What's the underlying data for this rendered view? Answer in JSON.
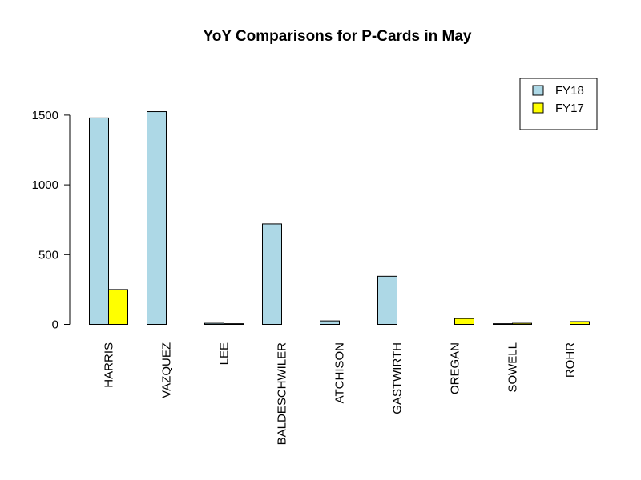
{
  "chart_data": {
    "type": "bar",
    "title": "YoY Comparisons for P-Cards in May",
    "xlabel": "",
    "ylabel": "",
    "categories": [
      "HARRIS",
      "VAZQUEZ",
      "LEE",
      "BALDESCHWILER",
      "ATCHISON",
      "GASTWIRTH",
      "OREGAN",
      "SOWELL",
      "ROHR"
    ],
    "series": [
      {
        "name": "FY18",
        "color": "#add8e6",
        "values": [
          1480,
          1525,
          8,
          720,
          25,
          345,
          0,
          5,
          0
        ]
      },
      {
        "name": "FY17",
        "color": "#ffff00",
        "values": [
          250,
          0,
          5,
          0,
          0,
          0,
          42,
          8,
          20
        ]
      }
    ],
    "ylim": [
      0,
      1500
    ],
    "yticks": [
      0,
      500,
      1000,
      1500
    ],
    "legend_position": "top-right",
    "grid": false
  }
}
